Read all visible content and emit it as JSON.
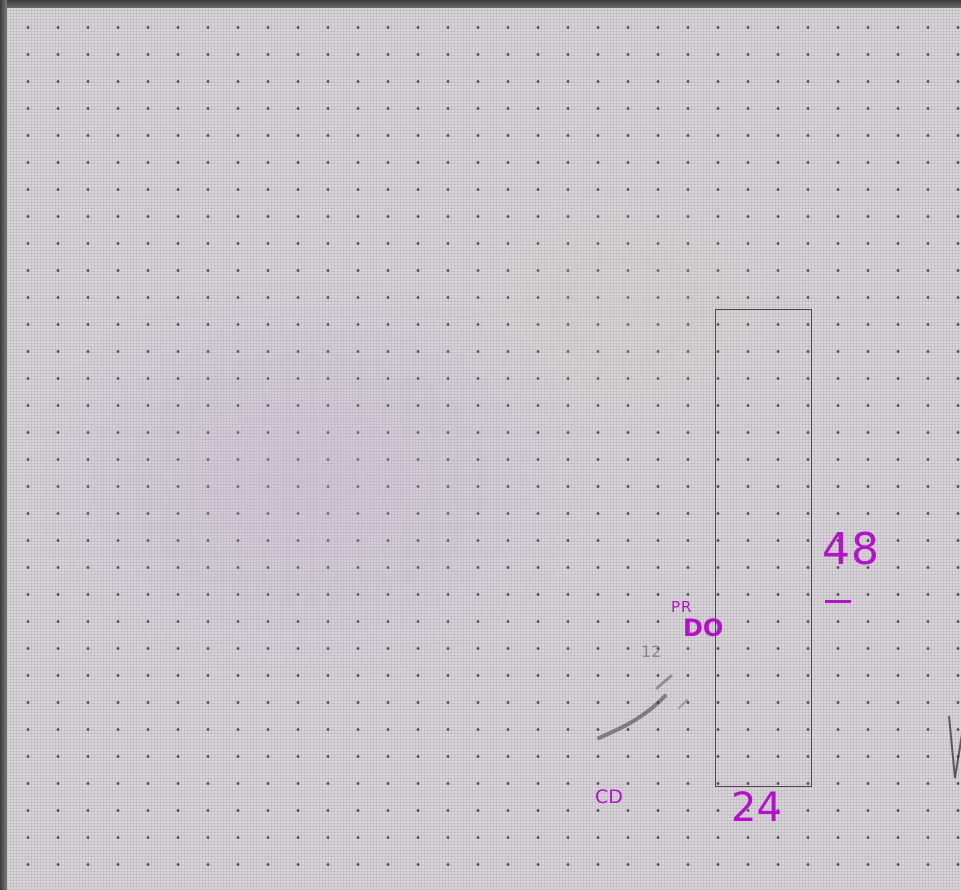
{
  "annotations": {
    "height_dimension": "48",
    "height_dimension_dash": "-",
    "width_dimension": "24",
    "label_pr": "PR",
    "label_marks": "DO",
    "label_cd": "CD",
    "faint_number": "12"
  },
  "colors": {
    "ink": "#b312c8",
    "paper": "#d8d4da",
    "grid_dot": "#2b2b2b",
    "rect_line": "#4d4a4d"
  }
}
